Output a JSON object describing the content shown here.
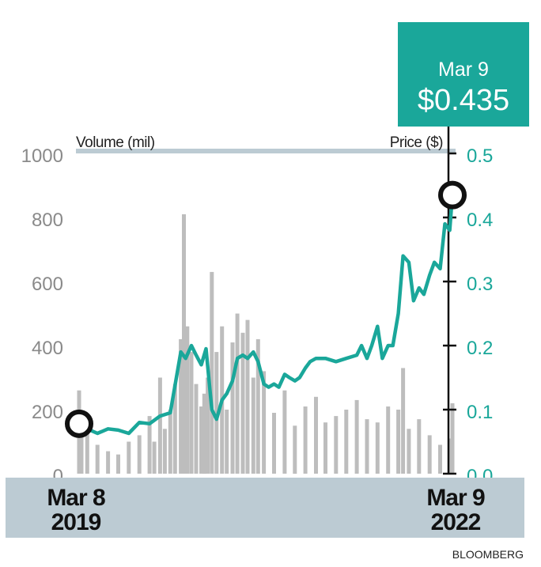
{
  "chart_data": {
    "type": "line",
    "callout": {
      "date": "Mar 9",
      "value": "$0.435"
    },
    "left_axis": {
      "label": "Volume (mil)",
      "ticks": [
        "1000",
        "800",
        "600",
        "400",
        "200",
        "0"
      ],
      "range": [
        0,
        1000
      ]
    },
    "right_axis": {
      "label": "Price ($)",
      "ticks": [
        "0.5",
        "0.4",
        "0.3",
        "0.2",
        "0.1",
        "0.0"
      ],
      "range": [
        0,
        0.5
      ]
    },
    "x_labels": {
      "start": {
        "month_day": "Mar 8",
        "year": "2019"
      },
      "end": {
        "month_day": "Mar 9",
        "year": "2022"
      }
    },
    "x_range": [
      "2019-03-08",
      "2022-03-09"
    ],
    "series": [
      {
        "kind": "line",
        "axis": "right",
        "color": "#1aa79a",
        "x": [
          "2019-03-08",
          "2019-04-01",
          "2019-05-01",
          "2019-06-01",
          "2019-07-01",
          "2019-08-01",
          "2019-09-01",
          "2019-10-01",
          "2019-11-01",
          "2019-12-01",
          "2020-01-01",
          "2020-01-15",
          "2020-02-01",
          "2020-02-15",
          "2020-03-01",
          "2020-03-15",
          "2020-04-01",
          "2020-04-15",
          "2020-05-01",
          "2020-05-15",
          "2020-06-01",
          "2020-06-15",
          "2020-07-01",
          "2020-07-15",
          "2020-08-01",
          "2020-08-15",
          "2020-09-01",
          "2020-09-15",
          "2020-10-01",
          "2020-10-15",
          "2020-11-01",
          "2020-11-15",
          "2020-12-01",
          "2020-12-15",
          "2021-01-01",
          "2021-01-15",
          "2021-02-01",
          "2021-03-01",
          "2021-04-01",
          "2021-05-01",
          "2021-06-01",
          "2021-06-15",
          "2021-07-01",
          "2021-07-15",
          "2021-08-01",
          "2021-08-15",
          "2021-09-01",
          "2021-09-15",
          "2021-10-01",
          "2021-10-15",
          "2021-11-01",
          "2021-11-15",
          "2021-12-01",
          "2021-12-15",
          "2022-01-01",
          "2022-01-15",
          "2022-02-01",
          "2022-02-15",
          "2022-03-01",
          "2022-03-09"
        ],
        "y": [
          0.078,
          0.07,
          0.063,
          0.07,
          0.068,
          0.063,
          0.08,
          0.078,
          0.09,
          0.095,
          0.19,
          0.18,
          0.2,
          0.185,
          0.17,
          0.195,
          0.1,
          0.085,
          0.115,
          0.125,
          0.145,
          0.18,
          0.185,
          0.18,
          0.19,
          0.175,
          0.14,
          0.135,
          0.14,
          0.135,
          0.155,
          0.15,
          0.145,
          0.15,
          0.165,
          0.175,
          0.18,
          0.18,
          0.175,
          0.18,
          0.185,
          0.2,
          0.18,
          0.2,
          0.23,
          0.18,
          0.2,
          0.2,
          0.25,
          0.34,
          0.33,
          0.27,
          0.29,
          0.28,
          0.31,
          0.33,
          0.32,
          0.39,
          0.38,
          0.435
        ]
      },
      {
        "kind": "bar",
        "axis": "left",
        "color": "#bdbdbd",
        "x": [
          "2019-03-08",
          "2019-03-15",
          "2019-04-01",
          "2019-05-01",
          "2019-06-01",
          "2019-07-01",
          "2019-08-01",
          "2019-09-01",
          "2019-10-01",
          "2019-10-15",
          "2019-11-01",
          "2019-11-15",
          "2019-12-01",
          "2019-12-15",
          "2020-01-01",
          "2020-01-10",
          "2020-01-20",
          "2020-02-01",
          "2020-02-15",
          "2020-03-01",
          "2020-03-10",
          "2020-03-20",
          "2020-04-01",
          "2020-04-15",
          "2020-05-01",
          "2020-05-15",
          "2020-06-01",
          "2020-06-15",
          "2020-07-01",
          "2020-07-15",
          "2020-08-01",
          "2020-08-15",
          "2020-09-01",
          "2020-10-01",
          "2020-11-01",
          "2020-12-01",
          "2021-01-01",
          "2021-02-01",
          "2021-03-01",
          "2021-04-01",
          "2021-05-01",
          "2021-06-01",
          "2021-07-01",
          "2021-08-01",
          "2021-09-01",
          "2021-10-01",
          "2021-10-15",
          "2021-11-01",
          "2021-12-01",
          "2022-01-01",
          "2022-02-01",
          "2022-03-01",
          "2022-03-09"
        ],
        "y": [
          260,
          170,
          130,
          90,
          70,
          60,
          100,
          120,
          180,
          100,
          300,
          140,
          200,
          280,
          420,
          810,
          460,
          380,
          280,
          210,
          250,
          300,
          630,
          380,
          460,
          200,
          410,
          500,
          440,
          480,
          300,
          420,
          320,
          190,
          260,
          150,
          210,
          240,
          160,
          180,
          200,
          230,
          170,
          160,
          210,
          200,
          330,
          140,
          170,
          120,
          90,
          110,
          220
        ]
      }
    ],
    "source": "BLOOMBERG"
  }
}
